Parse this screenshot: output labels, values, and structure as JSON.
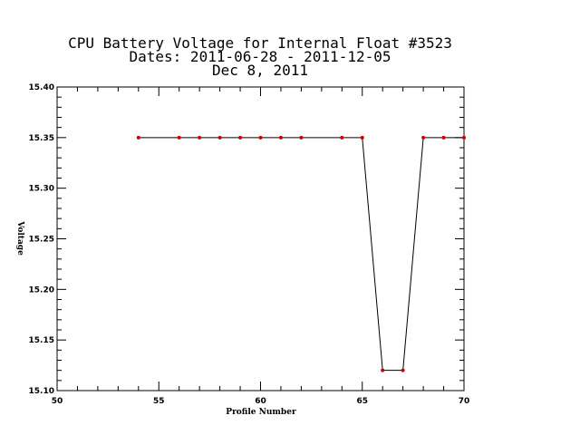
{
  "chart_data": {
    "type": "line",
    "title_lines": [
      "CPU Battery Voltage for Internal Float #3523",
      "Dates:  2011-06-28 -  2011-12-05",
      "Dec  8, 2011"
    ],
    "xlabel": "Profile Number",
    "ylabel": "Voltage",
    "xlim": [
      50,
      70
    ],
    "ylim": [
      15.1,
      15.4
    ],
    "x_ticks": [
      50,
      55,
      60,
      65,
      70
    ],
    "x_tick_labels": [
      "50",
      "55",
      "60",
      "65",
      "70"
    ],
    "y_ticks": [
      15.1,
      15.15,
      15.2,
      15.25,
      15.3,
      15.35,
      15.4
    ],
    "y_tick_labels": [
      "15.10",
      "15.15",
      "15.20",
      "15.25",
      "15.30",
      "15.35",
      "15.40"
    ],
    "x_minor_step": 1,
    "y_minor_step": 0.01,
    "grid": false,
    "line_color": "#000000",
    "marker_color": "#cc0000",
    "series": [
      {
        "x": [
          54,
          56,
          57,
          58,
          59,
          60,
          61,
          62,
          64,
          65,
          66,
          67,
          68,
          69,
          70
        ],
        "y": [
          15.35,
          15.35,
          15.35,
          15.35,
          15.35,
          15.35,
          15.35,
          15.35,
          15.35,
          15.35,
          15.12,
          15.12,
          15.35,
          15.35,
          15.35
        ]
      }
    ]
  }
}
